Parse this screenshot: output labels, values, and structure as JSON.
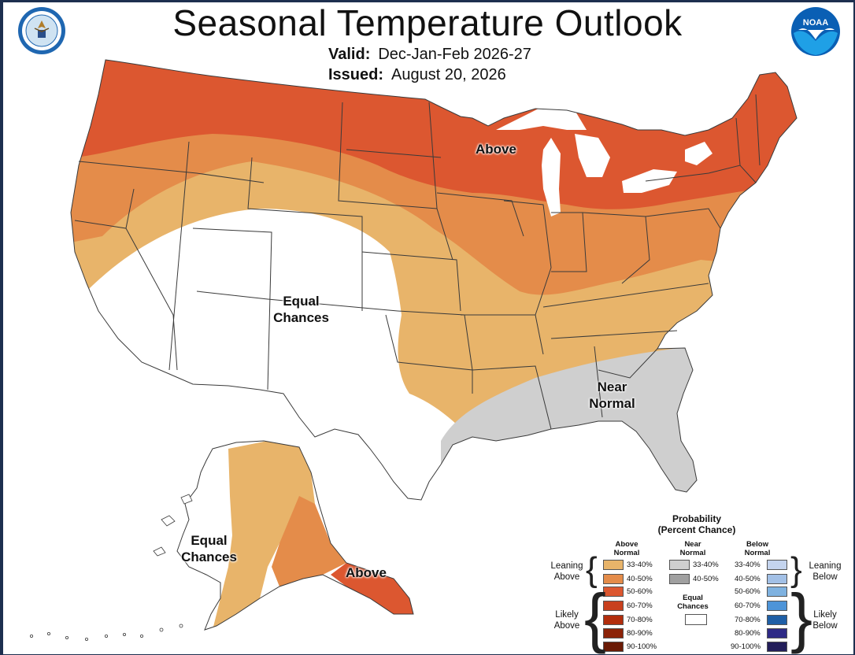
{
  "header": {
    "title": "Seasonal Temperature Outlook",
    "valid_label": "Valid:",
    "valid_value": "Dec-Jan-Feb 2026-27",
    "issued_label": "Issued:",
    "issued_value": "August 20, 2026"
  },
  "logos": {
    "left": "department-of-commerce-seal",
    "right": "noaa-logo",
    "right_text": "NOAA"
  },
  "map_labels": {
    "above_conus": "Above",
    "equal_conus": "Equal\nChances",
    "near_normal": "Near\nNormal",
    "equal_alaska": "Equal\nChances",
    "above_alaska": "Above"
  },
  "colors": {
    "above_33_40": "#e8b46a",
    "above_40_50": "#e48c4a",
    "above_50_60": "#dc5730",
    "above_60_70": "#c8401e",
    "above_70_80": "#b22e0d",
    "above_80_90": "#8c2308",
    "above_90_100": "#6a1a05",
    "near_33_40": "#cfcfcf",
    "near_40_50": "#a0a0a0",
    "below_33_40": "#c4d4ee",
    "below_40_50": "#a2c0e6",
    "below_50_60": "#7fb2e0",
    "below_60_70": "#4d94d8",
    "below_70_80": "#1f5fa6",
    "below_80_90": "#2e2a86",
    "below_90_100": "#231e5a",
    "background_frame": "#1d2f4f"
  },
  "legend": {
    "title": "Probability\n(Percent Chance)",
    "above_head": "Above\nNormal",
    "near_head": "Near\nNormal",
    "below_head": "Below\nNormal",
    "equal_label": "Equal\nChances",
    "leaning_above": "Leaning\nAbove",
    "likely_above": "Likely\nAbove",
    "leaning_below": "Leaning\nBelow",
    "likely_below": "Likely\nBelow",
    "above_ranges": [
      "33-40%",
      "40-50%",
      "50-60%",
      "60-70%",
      "70-80%",
      "80-90%",
      "90-100%"
    ],
    "near_ranges": [
      "33-40%",
      "40-50%"
    ],
    "below_ranges": [
      "33-40%",
      "40-50%",
      "50-60%",
      "60-70%",
      "70-80%",
      "80-90%",
      "90-100%"
    ]
  }
}
